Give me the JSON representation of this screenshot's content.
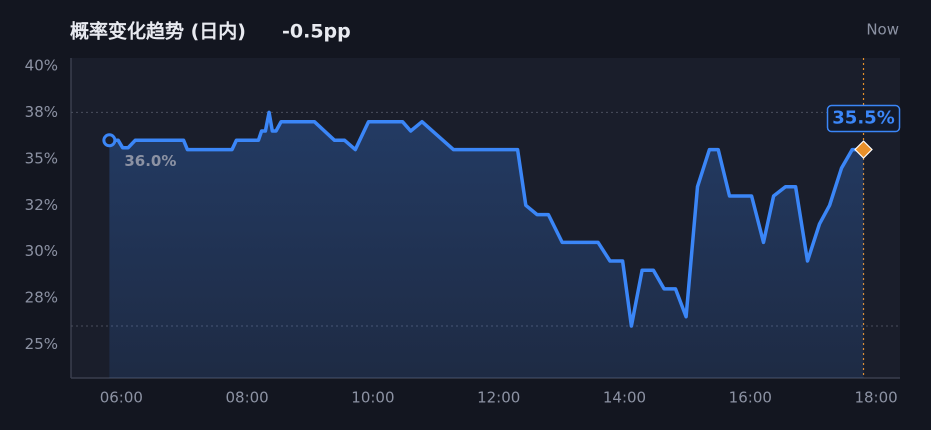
{
  "chart_data": {
    "type": "line",
    "title": "概率变化趋势 (日内)",
    "change": "-0.5pp",
    "now_label": "Now",
    "color": "#3b86f7",
    "now_color": "#e8902a",
    "x": [
      5.81,
      5.95,
      6.02,
      6.11,
      6.22,
      6.99,
      7.05,
      7.76,
      7.83,
      8.18,
      8.23,
      8.29,
      8.35,
      8.4,
      8.46,
      8.54,
      9.07,
      9.39,
      9.55,
      9.72,
      9.93,
      10.47,
      10.6,
      10.78,
      11.28,
      12.3,
      12.43,
      12.61,
      12.79,
      13.01,
      13.58,
      13.77,
      13.97,
      14.11,
      14.28,
      14.46,
      14.63,
      14.81,
      14.98,
      15.16,
      15.35,
      15.49,
      15.67,
      16.02,
      16.21,
      16.37,
      16.56,
      16.72,
      16.91,
      17.1,
      17.26,
      17.45,
      17.62,
      17.8
    ],
    "values": [
      36.0,
      36.0,
      35.6,
      35.6,
      36.0,
      36.0,
      35.5,
      35.5,
      36.0,
      36.0,
      36.5,
      36.5,
      37.5,
      36.5,
      36.5,
      37.0,
      37.0,
      36.0,
      36.0,
      35.5,
      37.0,
      37.0,
      36.5,
      37.0,
      35.5,
      35.5,
      32.5,
      32.0,
      32.0,
      30.5,
      30.5,
      29.5,
      29.5,
      26.0,
      29.0,
      29.0,
      28.0,
      28.0,
      26.5,
      33.5,
      35.5,
      35.5,
      33.0,
      33.0,
      30.5,
      33.0,
      33.5,
      33.5,
      29.5,
      31.5,
      32.5,
      34.5,
      35.5,
      35.5
    ],
    "start_label": "36.0%",
    "end_label": "35.5%",
    "high": 37.5,
    "low": 26.0,
    "now_x": 17.8,
    "xlim": [
      5.2,
      18.38
    ],
    "ylim": [
      23.2,
      40.43
    ],
    "xticks": [
      {
        "value": 6,
        "label": "06:00"
      },
      {
        "value": 8,
        "label": "08:00"
      },
      {
        "value": 10,
        "label": "10:00"
      },
      {
        "value": 12,
        "label": "12:00"
      },
      {
        "value": 14,
        "label": "14:00"
      },
      {
        "value": 16,
        "label": "16:00"
      },
      {
        "value": 18,
        "label": "18:00"
      }
    ],
    "yticks": [
      {
        "value": 40,
        "label": "40%"
      },
      {
        "value": 37.5,
        "label": "38%"
      },
      {
        "value": 35,
        "label": "35%"
      },
      {
        "value": 32.5,
        "label": "32%"
      },
      {
        "value": 30,
        "label": "30%"
      },
      {
        "value": 27.5,
        "label": "28%"
      },
      {
        "value": 25,
        "label": "25%"
      }
    ]
  }
}
